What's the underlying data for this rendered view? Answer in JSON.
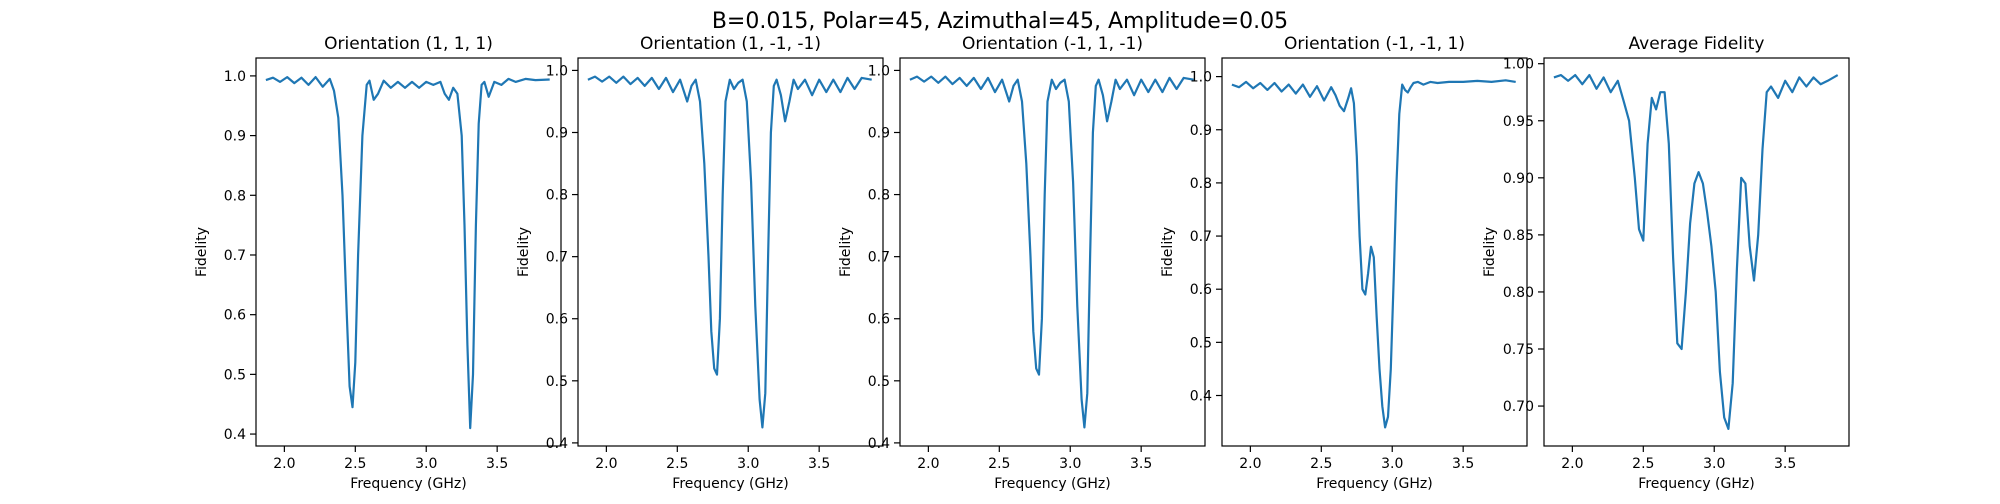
{
  "figure": {
    "suptitle": "B=0.015, Polar=45, Azimuthal=45, Amplitude=0.05"
  },
  "chart_data": [
    {
      "type": "line",
      "title": "Orientation (1, 1, 1)",
      "xlabel": "Frequency (GHz)",
      "ylabel": "Fidelity",
      "xlim": [
        1.8,
        3.95
      ],
      "ylim": [
        0.38,
        1.03
      ],
      "xticks": [
        2.0,
        2.5,
        3.0,
        3.5
      ],
      "xtick_labels": [
        "2.0",
        "2.5",
        "3.0",
        "3.5"
      ],
      "yticks": [
        0.4,
        0.5,
        0.6,
        0.7,
        0.8,
        0.9,
        1.0
      ],
      "ytick_labels": [
        "0.4",
        "0.5",
        "0.6",
        "0.7",
        "0.8",
        "0.9",
        "1.0"
      ],
      "color": "#1f77b4",
      "series": [
        {
          "x": [
            1.87,
            1.92,
            1.97,
            2.02,
            2.07,
            2.12,
            2.17,
            2.22,
            2.27,
            2.32,
            2.35,
            2.38,
            2.41,
            2.44,
            2.46,
            2.48,
            2.5,
            2.52,
            2.55,
            2.58,
            2.6,
            2.63,
            2.66,
            2.7,
            2.75,
            2.8,
            2.85,
            2.9,
            2.95,
            3.0,
            3.05,
            3.1,
            3.13,
            3.16,
            3.19,
            3.22,
            3.25,
            3.27,
            3.29,
            3.31,
            3.33,
            3.35,
            3.37,
            3.39,
            3.41,
            3.44,
            3.48,
            3.53,
            3.58,
            3.63,
            3.7,
            3.77,
            3.87
          ],
          "y": [
            0.993,
            0.997,
            0.99,
            0.998,
            0.988,
            0.997,
            0.985,
            0.998,
            0.982,
            0.995,
            0.975,
            0.93,
            0.8,
            0.6,
            0.48,
            0.445,
            0.52,
            0.7,
            0.9,
            0.985,
            0.992,
            0.96,
            0.97,
            0.992,
            0.98,
            0.99,
            0.98,
            0.99,
            0.98,
            0.99,
            0.985,
            0.99,
            0.97,
            0.96,
            0.98,
            0.97,
            0.9,
            0.75,
            0.55,
            0.41,
            0.5,
            0.75,
            0.92,
            0.985,
            0.99,
            0.965,
            0.99,
            0.985,
            0.995,
            0.99,
            0.995,
            0.993,
            0.994
          ]
        }
      ]
    },
    {
      "type": "line",
      "title": "Orientation (1, -1, -1)",
      "xlabel": "Frequency (GHz)",
      "ylabel": "Fidelity",
      "xlim": [
        1.8,
        3.95
      ],
      "ylim": [
        0.395,
        1.02
      ],
      "xticks": [
        2.0,
        2.5,
        3.0,
        3.5
      ],
      "xtick_labels": [
        "2.0",
        "2.5",
        "3.0",
        "3.5"
      ],
      "yticks": [
        0.4,
        0.5,
        0.6,
        0.7,
        0.8,
        0.9,
        1.0
      ],
      "ytick_labels": [
        "0.4",
        "0.5",
        "0.6",
        "0.7",
        "0.8",
        "0.9",
        "1.0"
      ],
      "color": "#1f77b4",
      "series": [
        {
          "x": [
            1.87,
            1.92,
            1.97,
            2.02,
            2.07,
            2.12,
            2.17,
            2.22,
            2.27,
            2.32,
            2.37,
            2.42,
            2.47,
            2.52,
            2.57,
            2.6,
            2.63,
            2.66,
            2.69,
            2.72,
            2.74,
            2.76,
            2.78,
            2.8,
            2.82,
            2.84,
            2.87,
            2.9,
            2.93,
            2.96,
            2.99,
            3.02,
            3.05,
            3.08,
            3.1,
            3.12,
            3.14,
            3.16,
            3.18,
            3.2,
            3.23,
            3.26,
            3.29,
            3.32,
            3.35,
            3.4,
            3.45,
            3.5,
            3.55,
            3.6,
            3.65,
            3.7,
            3.75,
            3.8,
            3.87
          ],
          "y": [
            0.985,
            0.99,
            0.982,
            0.99,
            0.98,
            0.99,
            0.978,
            0.988,
            0.975,
            0.988,
            0.97,
            0.988,
            0.965,
            0.985,
            0.95,
            0.975,
            0.985,
            0.95,
            0.85,
            0.7,
            0.58,
            0.52,
            0.51,
            0.6,
            0.8,
            0.95,
            0.985,
            0.97,
            0.98,
            0.985,
            0.95,
            0.82,
            0.62,
            0.47,
            0.425,
            0.48,
            0.7,
            0.9,
            0.975,
            0.985,
            0.96,
            0.918,
            0.95,
            0.985,
            0.97,
            0.985,
            0.96,
            0.985,
            0.965,
            0.985,
            0.965,
            0.988,
            0.97,
            0.988,
            0.985
          ]
        }
      ]
    },
    {
      "type": "line",
      "title": "Orientation (-1, 1, -1)",
      "xlabel": "Frequency (GHz)",
      "ylabel": "Fidelity",
      "xlim": [
        1.8,
        3.95
      ],
      "ylim": [
        0.395,
        1.02
      ],
      "xticks": [
        2.0,
        2.5,
        3.0,
        3.5
      ],
      "xtick_labels": [
        "2.0",
        "2.5",
        "3.0",
        "3.5"
      ],
      "yticks": [
        0.4,
        0.5,
        0.6,
        0.7,
        0.8,
        0.9,
        1.0
      ],
      "ytick_labels": [
        "0.4",
        "0.5",
        "0.6",
        "0.7",
        "0.8",
        "0.9",
        "1.0"
      ],
      "color": "#1f77b4",
      "series": [
        {
          "x": [
            1.87,
            1.92,
            1.97,
            2.02,
            2.07,
            2.12,
            2.17,
            2.22,
            2.27,
            2.32,
            2.37,
            2.42,
            2.47,
            2.52,
            2.57,
            2.6,
            2.63,
            2.66,
            2.69,
            2.72,
            2.74,
            2.76,
            2.78,
            2.8,
            2.82,
            2.84,
            2.87,
            2.9,
            2.93,
            2.96,
            2.99,
            3.02,
            3.05,
            3.08,
            3.1,
            3.12,
            3.14,
            3.16,
            3.18,
            3.2,
            3.23,
            3.26,
            3.29,
            3.32,
            3.35,
            3.4,
            3.45,
            3.5,
            3.55,
            3.6,
            3.65,
            3.7,
            3.75,
            3.8,
            3.87
          ],
          "y": [
            0.985,
            0.99,
            0.982,
            0.99,
            0.98,
            0.99,
            0.978,
            0.988,
            0.975,
            0.988,
            0.97,
            0.988,
            0.965,
            0.985,
            0.95,
            0.975,
            0.985,
            0.95,
            0.85,
            0.7,
            0.58,
            0.52,
            0.51,
            0.6,
            0.8,
            0.95,
            0.985,
            0.97,
            0.98,
            0.985,
            0.95,
            0.82,
            0.62,
            0.47,
            0.425,
            0.48,
            0.7,
            0.9,
            0.975,
            0.985,
            0.96,
            0.918,
            0.95,
            0.985,
            0.97,
            0.985,
            0.96,
            0.985,
            0.965,
            0.985,
            0.965,
            0.988,
            0.97,
            0.988,
            0.985
          ]
        }
      ]
    },
    {
      "type": "line",
      "title": "Orientation (-1, -1, 1)",
      "xlabel": "Frequency (GHz)",
      "ylabel": "Fidelity",
      "xlim": [
        1.8,
        3.95
      ],
      "ylim": [
        0.305,
        1.035
      ],
      "xticks": [
        2.0,
        2.5,
        3.0,
        3.5
      ],
      "xtick_labels": [
        "2.0",
        "2.5",
        "3.0",
        "3.5"
      ],
      "yticks": [
        0.4,
        0.5,
        0.6,
        0.7,
        0.8,
        0.9,
        1.0
      ],
      "ytick_labels": [
        "0.4",
        "0.5",
        "0.6",
        "0.7",
        "0.8",
        "0.9",
        "1.0"
      ],
      "color": "#1f77b4",
      "series": [
        {
          "x": [
            1.87,
            1.92,
            1.97,
            2.02,
            2.07,
            2.12,
            2.17,
            2.22,
            2.27,
            2.32,
            2.37,
            2.42,
            2.47,
            2.52,
            2.57,
            2.6,
            2.63,
            2.66,
            2.69,
            2.71,
            2.73,
            2.75,
            2.77,
            2.79,
            2.81,
            2.83,
            2.85,
            2.87,
            2.89,
            2.91,
            2.93,
            2.95,
            2.97,
            2.99,
            3.01,
            3.03,
            3.05,
            3.07,
            3.09,
            3.11,
            3.13,
            3.15,
            3.18,
            3.22,
            3.27,
            3.32,
            3.4,
            3.5,
            3.6,
            3.7,
            3.8,
            3.87
          ],
          "y": [
            0.985,
            0.98,
            0.99,
            0.978,
            0.988,
            0.975,
            0.988,
            0.972,
            0.985,
            0.968,
            0.985,
            0.962,
            0.982,
            0.955,
            0.98,
            0.965,
            0.945,
            0.935,
            0.96,
            0.978,
            0.95,
            0.85,
            0.7,
            0.6,
            0.59,
            0.63,
            0.68,
            0.66,
            0.55,
            0.45,
            0.38,
            0.34,
            0.36,
            0.45,
            0.62,
            0.8,
            0.93,
            0.985,
            0.975,
            0.97,
            0.98,
            0.988,
            0.99,
            0.985,
            0.99,
            0.988,
            0.99,
            0.99,
            0.992,
            0.99,
            0.993,
            0.99
          ]
        }
      ]
    },
    {
      "type": "line",
      "title": "Average Fidelity",
      "xlabel": "Frequency (GHz)",
      "ylabel": "Fidelity",
      "xlim": [
        1.8,
        3.95
      ],
      "ylim": [
        0.665,
        1.005
      ],
      "xticks": [
        2.0,
        2.5,
        3.0,
        3.5
      ],
      "xtick_labels": [
        "2.0",
        "2.5",
        "3.0",
        "3.5"
      ],
      "yticks": [
        0.7,
        0.75,
        0.8,
        0.85,
        0.9,
        0.95,
        1.0
      ],
      "ytick_labels": [
        "0.70",
        "0.75",
        "0.80",
        "0.85",
        "0.90",
        "0.95",
        "1.00"
      ],
      "color": "#1f77b4",
      "series": [
        {
          "x": [
            1.87,
            1.92,
            1.97,
            2.02,
            2.07,
            2.12,
            2.17,
            2.22,
            2.27,
            2.32,
            2.36,
            2.4,
            2.44,
            2.47,
            2.5,
            2.53,
            2.56,
            2.59,
            2.62,
            2.65,
            2.68,
            2.71,
            2.74,
            2.77,
            2.8,
            2.83,
            2.86,
            2.89,
            2.92,
            2.95,
            2.98,
            3.01,
            3.04,
            3.07,
            3.1,
            3.13,
            3.16,
            3.19,
            3.22,
            3.25,
            3.28,
            3.31,
            3.34,
            3.37,
            3.4,
            3.45,
            3.5,
            3.55,
            3.6,
            3.65,
            3.7,
            3.75,
            3.8,
            3.87
          ],
          "y": [
            0.988,
            0.99,
            0.985,
            0.99,
            0.982,
            0.99,
            0.978,
            0.988,
            0.975,
            0.985,
            0.968,
            0.95,
            0.9,
            0.855,
            0.845,
            0.93,
            0.97,
            0.96,
            0.975,
            0.975,
            0.93,
            0.83,
            0.755,
            0.75,
            0.8,
            0.86,
            0.895,
            0.905,
            0.895,
            0.87,
            0.84,
            0.8,
            0.73,
            0.69,
            0.68,
            0.72,
            0.82,
            0.9,
            0.895,
            0.84,
            0.81,
            0.85,
            0.925,
            0.975,
            0.98,
            0.97,
            0.985,
            0.975,
            0.988,
            0.98,
            0.988,
            0.982,
            0.985,
            0.99
          ]
        }
      ]
    }
  ]
}
